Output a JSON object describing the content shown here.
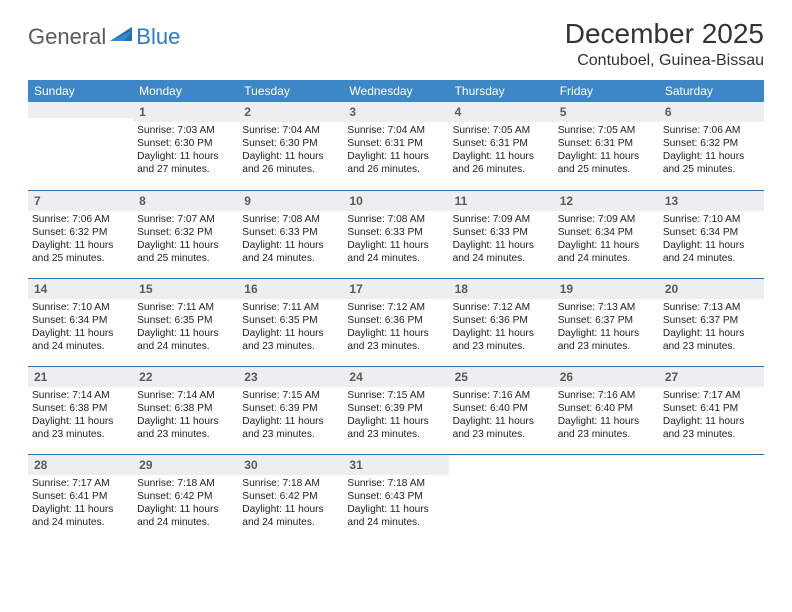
{
  "logo": {
    "general": "General",
    "blue": "Blue"
  },
  "title": "December 2025",
  "location": "Contuboel, Guinea-Bissau",
  "colors": {
    "header_bg": "#3d87c7",
    "header_fg": "#ffffff",
    "daynum_bg": "#eceeef",
    "rule": "#2e6da4",
    "logo_blue": "#2f79c2",
    "logo_gray": "#5a5a5a"
  },
  "day_headers": [
    "Sunday",
    "Monday",
    "Tuesday",
    "Wednesday",
    "Thursday",
    "Friday",
    "Saturday"
  ],
  "weeks": [
    [
      {
        "n": "",
        "sr": "",
        "ss": "",
        "dl": ""
      },
      {
        "n": "1",
        "sr": "7:03 AM",
        "ss": "6:30 PM",
        "dl": "11 hours and 27 minutes."
      },
      {
        "n": "2",
        "sr": "7:04 AM",
        "ss": "6:30 PM",
        "dl": "11 hours and 26 minutes."
      },
      {
        "n": "3",
        "sr": "7:04 AM",
        "ss": "6:31 PM",
        "dl": "11 hours and 26 minutes."
      },
      {
        "n": "4",
        "sr": "7:05 AM",
        "ss": "6:31 PM",
        "dl": "11 hours and 26 minutes."
      },
      {
        "n": "5",
        "sr": "7:05 AM",
        "ss": "6:31 PM",
        "dl": "11 hours and 25 minutes."
      },
      {
        "n": "6",
        "sr": "7:06 AM",
        "ss": "6:32 PM",
        "dl": "11 hours and 25 minutes."
      }
    ],
    [
      {
        "n": "7",
        "sr": "7:06 AM",
        "ss": "6:32 PM",
        "dl": "11 hours and 25 minutes."
      },
      {
        "n": "8",
        "sr": "7:07 AM",
        "ss": "6:32 PM",
        "dl": "11 hours and 25 minutes."
      },
      {
        "n": "9",
        "sr": "7:08 AM",
        "ss": "6:33 PM",
        "dl": "11 hours and 24 minutes."
      },
      {
        "n": "10",
        "sr": "7:08 AM",
        "ss": "6:33 PM",
        "dl": "11 hours and 24 minutes."
      },
      {
        "n": "11",
        "sr": "7:09 AM",
        "ss": "6:33 PM",
        "dl": "11 hours and 24 minutes."
      },
      {
        "n": "12",
        "sr": "7:09 AM",
        "ss": "6:34 PM",
        "dl": "11 hours and 24 minutes."
      },
      {
        "n": "13",
        "sr": "7:10 AM",
        "ss": "6:34 PM",
        "dl": "11 hours and 24 minutes."
      }
    ],
    [
      {
        "n": "14",
        "sr": "7:10 AM",
        "ss": "6:34 PM",
        "dl": "11 hours and 24 minutes."
      },
      {
        "n": "15",
        "sr": "7:11 AM",
        "ss": "6:35 PM",
        "dl": "11 hours and 24 minutes."
      },
      {
        "n": "16",
        "sr": "7:11 AM",
        "ss": "6:35 PM",
        "dl": "11 hours and 23 minutes."
      },
      {
        "n": "17",
        "sr": "7:12 AM",
        "ss": "6:36 PM",
        "dl": "11 hours and 23 minutes."
      },
      {
        "n": "18",
        "sr": "7:12 AM",
        "ss": "6:36 PM",
        "dl": "11 hours and 23 minutes."
      },
      {
        "n": "19",
        "sr": "7:13 AM",
        "ss": "6:37 PM",
        "dl": "11 hours and 23 minutes."
      },
      {
        "n": "20",
        "sr": "7:13 AM",
        "ss": "6:37 PM",
        "dl": "11 hours and 23 minutes."
      }
    ],
    [
      {
        "n": "21",
        "sr": "7:14 AM",
        "ss": "6:38 PM",
        "dl": "11 hours and 23 minutes."
      },
      {
        "n": "22",
        "sr": "7:14 AM",
        "ss": "6:38 PM",
        "dl": "11 hours and 23 minutes."
      },
      {
        "n": "23",
        "sr": "7:15 AM",
        "ss": "6:39 PM",
        "dl": "11 hours and 23 minutes."
      },
      {
        "n": "24",
        "sr": "7:15 AM",
        "ss": "6:39 PM",
        "dl": "11 hours and 23 minutes."
      },
      {
        "n": "25",
        "sr": "7:16 AM",
        "ss": "6:40 PM",
        "dl": "11 hours and 23 minutes."
      },
      {
        "n": "26",
        "sr": "7:16 AM",
        "ss": "6:40 PM",
        "dl": "11 hours and 23 minutes."
      },
      {
        "n": "27",
        "sr": "7:17 AM",
        "ss": "6:41 PM",
        "dl": "11 hours and 23 minutes."
      }
    ],
    [
      {
        "n": "28",
        "sr": "7:17 AM",
        "ss": "6:41 PM",
        "dl": "11 hours and 24 minutes."
      },
      {
        "n": "29",
        "sr": "7:18 AM",
        "ss": "6:42 PM",
        "dl": "11 hours and 24 minutes."
      },
      {
        "n": "30",
        "sr": "7:18 AM",
        "ss": "6:42 PM",
        "dl": "11 hours and 24 minutes."
      },
      {
        "n": "31",
        "sr": "7:18 AM",
        "ss": "6:43 PM",
        "dl": "11 hours and 24 minutes."
      },
      {
        "n": "",
        "sr": "",
        "ss": "",
        "dl": ""
      },
      {
        "n": "",
        "sr": "",
        "ss": "",
        "dl": ""
      },
      {
        "n": "",
        "sr": "",
        "ss": "",
        "dl": ""
      }
    ]
  ],
  "labels": {
    "sunrise": "Sunrise:",
    "sunset": "Sunset:",
    "daylight": "Daylight:"
  }
}
